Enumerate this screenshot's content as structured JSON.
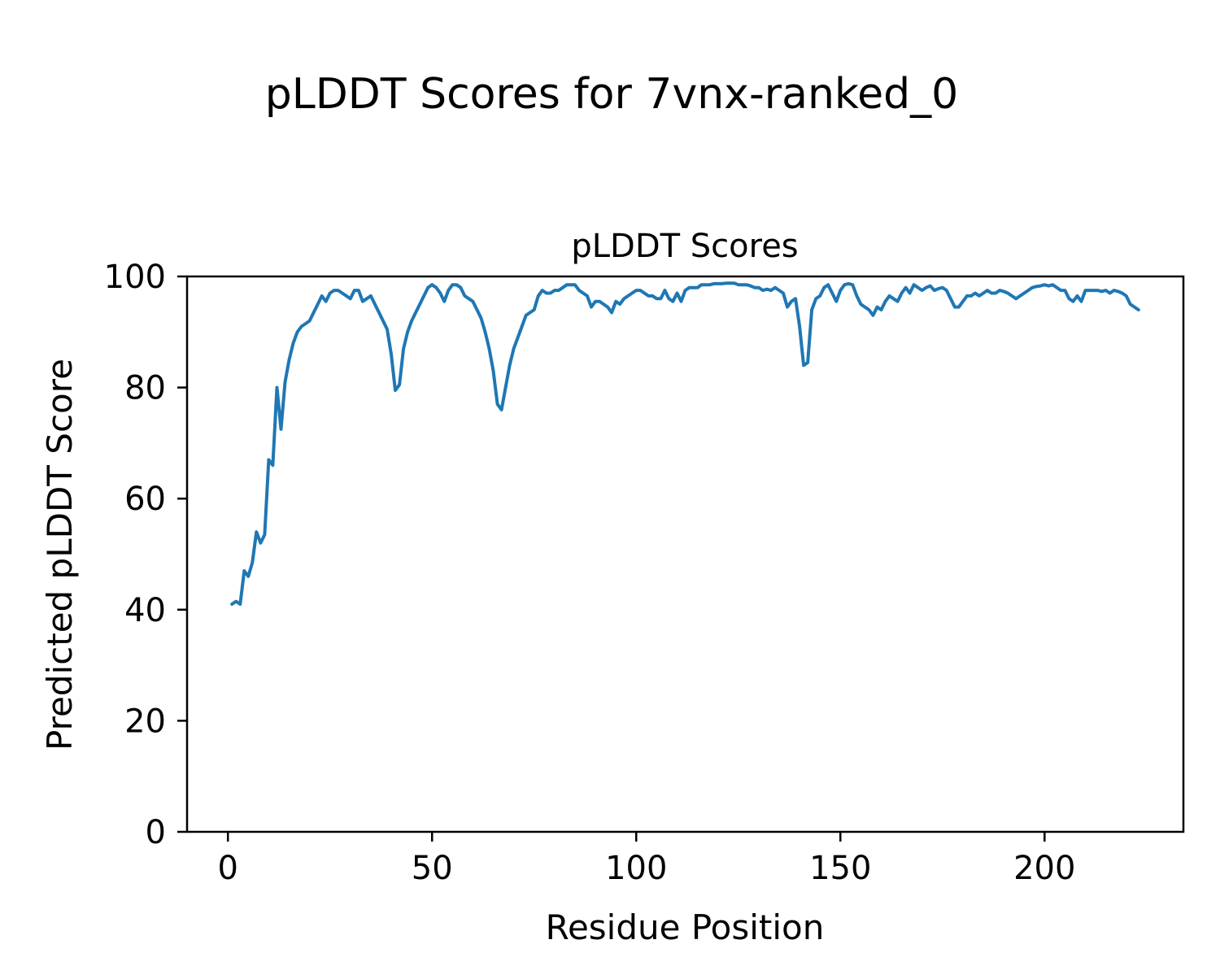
{
  "figure": {
    "suptitle": "pLDDT Scores for 7vnx-ranked_0",
    "background": "#ffffff"
  },
  "chart_data": {
    "type": "line",
    "title": "pLDDT Scores",
    "xlabel": "Residue Position",
    "ylabel": "Predicted pLDDT Score",
    "xlim": [
      -10,
      234
    ],
    "ylim": [
      0,
      100
    ],
    "xticks": [
      0,
      50,
      100,
      150,
      200
    ],
    "yticks": [
      0,
      20,
      40,
      60,
      80,
      100
    ],
    "grid": false,
    "legend": "none",
    "line_color": "#1f77b4",
    "line_width": 4,
    "series": [
      {
        "name": "pLDDT",
        "x_start": 1,
        "x_step": 1,
        "values": [
          41,
          41.5,
          41,
          47,
          46,
          48.5,
          54,
          52,
          53.5,
          67,
          66,
          80,
          72.5,
          81,
          85,
          88,
          90,
          91,
          91.5,
          92,
          93.5,
          95,
          96.5,
          95.5,
          97,
          97.5,
          97.5,
          97,
          96.5,
          96,
          97.5,
          97.5,
          95.5,
          96,
          96.5,
          95,
          93.5,
          92,
          90.5,
          86,
          79.5,
          80.5,
          87,
          90,
          92,
          93.5,
          95,
          96.5,
          98,
          98.5,
          98,
          97,
          95.5,
          97.5,
          98.5,
          98.5,
          98,
          96.5,
          96,
          95.5,
          94,
          92.5,
          90,
          87,
          83,
          77,
          76,
          80,
          84,
          87,
          89,
          91,
          93,
          93.5,
          94,
          96.5,
          97.5,
          97,
          97,
          97.5,
          97.5,
          98,
          98.5,
          98.5,
          98.5,
          97.5,
          97,
          96.5,
          94.5,
          95.5,
          95.5,
          95,
          94.5,
          93.5,
          95.5,
          95,
          96,
          96.5,
          97,
          97.5,
          97.5,
          97,
          96.5,
          96.5,
          96,
          96,
          97.5,
          96,
          95.5,
          97,
          95.5,
          97.5,
          98,
          98,
          98,
          98.5,
          98.5,
          98.5,
          98.7,
          98.7,
          98.7,
          98.8,
          98.8,
          98.8,
          98.5,
          98.5,
          98.5,
          98.3,
          98,
          98,
          97.5,
          97.7,
          97.5,
          98,
          97.5,
          97,
          94.5,
          95.5,
          96,
          91,
          84,
          84.5,
          94,
          96,
          96.5,
          98,
          98.5,
          97,
          95.5,
          97.5,
          98.5,
          98.7,
          98.5,
          96.5,
          95,
          94.5,
          94,
          93,
          94.5,
          94,
          95.5,
          96.5,
          96,
          95.5,
          97,
          98,
          97,
          98.5,
          98,
          97.5,
          98,
          98.3,
          97.5,
          97.8,
          98,
          97.5,
          96,
          94.5,
          94.5,
          95.5,
          96.5,
          96.5,
          97,
          96.5,
          97,
          97.5,
          97,
          97,
          97.5,
          97.3,
          97,
          96.5,
          96,
          96.5,
          97,
          97.5,
          98,
          98.2,
          98.3,
          98.5,
          98.3,
          98.5,
          98,
          97.5,
          97.5,
          96,
          95.5,
          96.5,
          95.5,
          97.5,
          97.5,
          97.5,
          97.5,
          97.3,
          97.5,
          97,
          97.5,
          97.3,
          97,
          96.5,
          95,
          94.5,
          94
        ]
      }
    ]
  }
}
